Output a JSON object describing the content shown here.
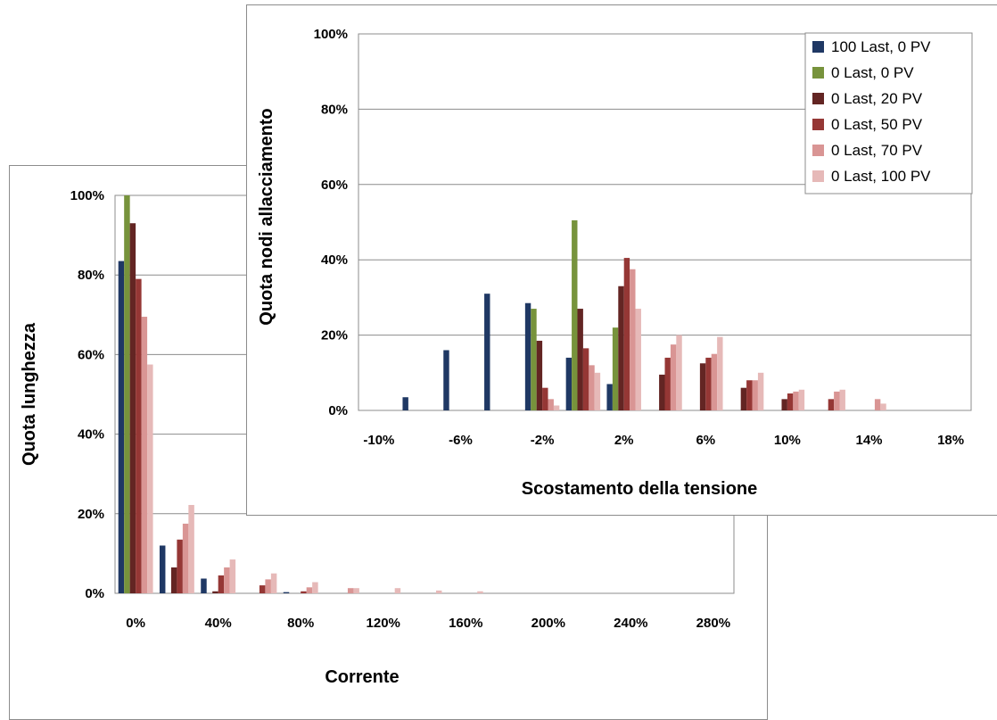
{
  "chart_data": [
    {
      "id": "current-chart",
      "type": "bar",
      "xlabel": "Corrente",
      "ylabel": "Quota lunghezza",
      "xtick_labels": [
        "0%",
        "40%",
        "80%",
        "120%",
        "160%",
        "200%",
        "240%",
        "280%"
      ],
      "ytick_labels": [
        "0%",
        "20%",
        "40%",
        "60%",
        "80%",
        "100%"
      ],
      "ylim": [
        0,
        1
      ],
      "grid": true,
      "categories": [
        "0%",
        "20%",
        "40%",
        "60%",
        "80%",
        "100%",
        "120%",
        "140%",
        "160%",
        "180%",
        "200%",
        "220%",
        "240%",
        "260%",
        "280%"
      ],
      "series": [
        {
          "name": "100 Last, 0 PV",
          "color": "#1f3864",
          "values": [
            0.835,
            0.12,
            0.037,
            0,
            0.003,
            0,
            0,
            0,
            0,
            0,
            0,
            0,
            0,
            0,
            0
          ]
        },
        {
          "name": "0 Last, 0 PV",
          "color": "#77933c",
          "values": [
            1.0,
            0,
            0,
            0,
            0,
            0,
            0,
            0,
            0,
            0,
            0,
            0,
            0,
            0,
            0
          ]
        },
        {
          "name": "0 Last, 20 PV",
          "color": "#632523",
          "values": [
            0.93,
            0.065,
            0.005,
            0,
            0,
            0,
            0,
            0,
            0,
            0,
            0,
            0,
            0,
            0,
            0
          ]
        },
        {
          "name": "0 Last, 50 PV",
          "color": "#953735",
          "values": [
            0.79,
            0.135,
            0.045,
            0.02,
            0.005,
            0,
            0,
            0,
            0,
            0,
            0,
            0,
            0,
            0,
            0
          ]
        },
        {
          "name": "0 Last, 70 PV",
          "color": "#d99594",
          "values": [
            0.695,
            0.175,
            0.065,
            0.035,
            0.015,
            0.013,
            0,
            0,
            0,
            0,
            0,
            0,
            0,
            0,
            0
          ]
        },
        {
          "name": "0 Last, 100 PV",
          "color": "#e6b9b8",
          "values": [
            0.575,
            0.222,
            0.085,
            0.05,
            0.028,
            0.013,
            0.013,
            0.007,
            0.005,
            0,
            0,
            0,
            0,
            0,
            0
          ]
        }
      ]
    },
    {
      "id": "voltage-chart",
      "type": "bar",
      "xlabel": "Scostamento della tensione",
      "ylabel": "Quota nodi allacciamento",
      "xtick_labels": [
        "-10%",
        "-6%",
        "-2%",
        "2%",
        "6%",
        "10%",
        "14%",
        "18%"
      ],
      "ytick_labels": [
        "0%",
        "20%",
        "40%",
        "60%",
        "80%",
        "100%"
      ],
      "ylim": [
        0,
        1
      ],
      "grid": true,
      "legend_position": "top-right",
      "categories": [
        "-10%",
        "-8%",
        "-6%",
        "-4%",
        "-2%",
        "0%",
        "2%",
        "4%",
        "6%",
        "8%",
        "10%",
        "12%",
        "14%",
        "16%",
        "18%"
      ],
      "series": [
        {
          "name": "100 Last, 0 PV",
          "color": "#1f3864",
          "values": [
            0,
            0.035,
            0.16,
            0.31,
            0.285,
            0.14,
            0.07,
            0,
            0,
            0,
            0,
            0,
            0,
            0,
            0
          ]
        },
        {
          "name": "0 Last, 0 PV",
          "color": "#77933c",
          "values": [
            0,
            0,
            0,
            0,
            0.27,
            0.505,
            0.22,
            0,
            0,
            0,
            0,
            0,
            0,
            0,
            0
          ]
        },
        {
          "name": "0 Last, 20 PV",
          "color": "#632523",
          "values": [
            0,
            0,
            0,
            0,
            0.185,
            0.27,
            0.33,
            0.095,
            0.125,
            0.06,
            0.03,
            0,
            0,
            0,
            0
          ]
        },
        {
          "name": "0 Last, 50 PV",
          "color": "#953735",
          "values": [
            0,
            0,
            0,
            0,
            0.06,
            0.165,
            0.405,
            0.14,
            0.14,
            0.08,
            0.045,
            0.03,
            0,
            0,
            0
          ]
        },
        {
          "name": "0 Last, 70 PV",
          "color": "#d99594",
          "values": [
            0,
            0,
            0,
            0,
            0.03,
            0.12,
            0.375,
            0.175,
            0.15,
            0.08,
            0.05,
            0.05,
            0.03,
            0,
            0
          ]
        },
        {
          "name": "0 Last, 100 PV",
          "color": "#e6b9b8",
          "values": [
            0,
            0,
            0,
            0,
            0.013,
            0.1,
            0.27,
            0.2,
            0.195,
            0.1,
            0.055,
            0.055,
            0.018,
            0,
            0
          ]
        }
      ]
    }
  ]
}
